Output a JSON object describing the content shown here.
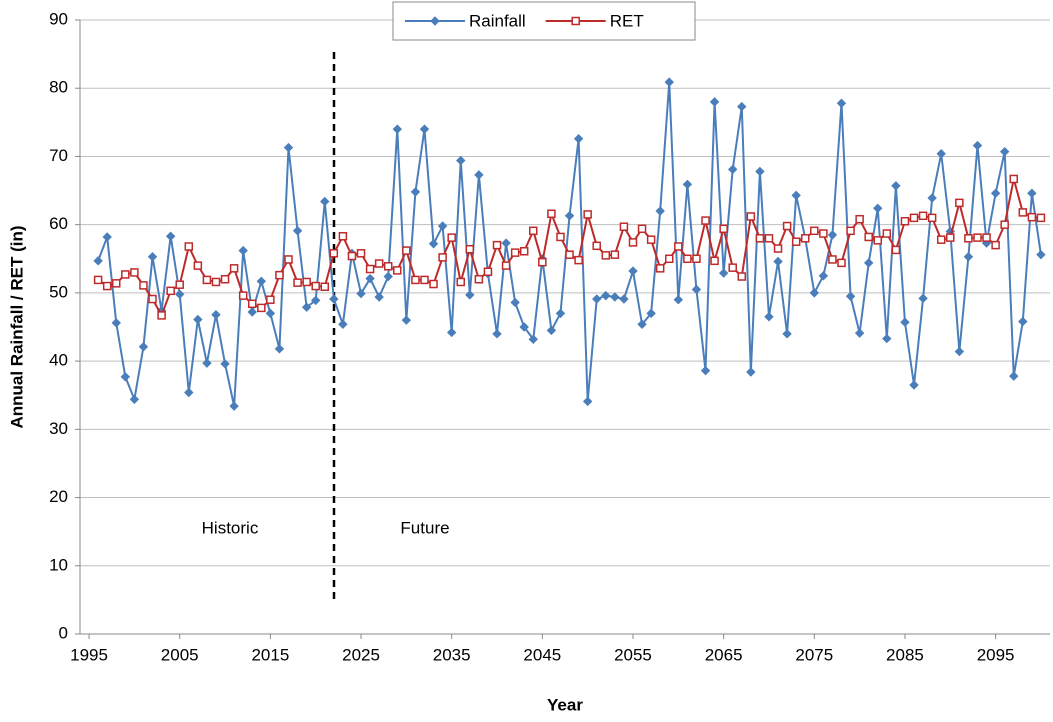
{
  "chart_data": {
    "type": "line",
    "xlabel": "Year",
    "ylabel": "Annual Rainfall / RET (in)",
    "annotations": [
      "Historic",
      "Future"
    ],
    "x": [
      1996,
      1997,
      1998,
      1999,
      2000,
      2001,
      2002,
      2003,
      2004,
      2005,
      2006,
      2007,
      2008,
      2009,
      2010,
      2011,
      2012,
      2013,
      2014,
      2015,
      2016,
      2017,
      2018,
      2019,
      2020,
      2021,
      2022,
      2023,
      2024,
      2025,
      2026,
      2027,
      2028,
      2029,
      2030,
      2031,
      2032,
      2033,
      2034,
      2035,
      2036,
      2037,
      2038,
      2039,
      2040,
      2041,
      2042,
      2043,
      2044,
      2045,
      2046,
      2047,
      2048,
      2049,
      2050,
      2051,
      2052,
      2053,
      2054,
      2055,
      2056,
      2057,
      2058,
      2059,
      2060,
      2061,
      2062,
      2063,
      2064,
      2065,
      2066,
      2067,
      2068,
      2069,
      2070,
      2071,
      2072,
      2073,
      2074,
      2075,
      2076,
      2077,
      2078,
      2079,
      2080,
      2081,
      2082,
      2083,
      2084,
      2085,
      2086,
      2087,
      2088,
      2089,
      2090,
      2091,
      2092,
      2093,
      2094,
      2095,
      2096,
      2097,
      2098,
      2099,
      2100
    ],
    "series": [
      {
        "name": "Rainfall",
        "color": "#4a7ebb",
        "marker": "diamond",
        "values": [
          54.7,
          58.2,
          45.6,
          37.7,
          34.4,
          42.1,
          55.3,
          47.4,
          58.3,
          49.8,
          35.4,
          46.1,
          39.7,
          46.8,
          39.6,
          33.4,
          56.2,
          47.2,
          51.7,
          47.0,
          41.8,
          71.3,
          59.1,
          47.9,
          48.9,
          63.4,
          49.1,
          45.4,
          55.8,
          49.9,
          52.1,
          49.4,
          52.4,
          74.0,
          46.0,
          64.8,
          74.0,
          57.2,
          59.8,
          44.2,
          69.4,
          49.7,
          67.3,
          52.8,
          44.0,
          57.3,
          48.6,
          45.0,
          43.2,
          55.0,
          44.5,
          47.0,
          61.3,
          72.6,
          34.1,
          49.1,
          49.6,
          49.4,
          49.1,
          53.2,
          45.4,
          47.0,
          62.0,
          80.9,
          49.0,
          65.9,
          50.5,
          38.6,
          78.0,
          52.9,
          68.1,
          77.3,
          38.4,
          67.8,
          46.5,
          54.6,
          44.0,
          64.3,
          58.0,
          50.0,
          52.5,
          58.5,
          77.8,
          49.5,
          44.1,
          54.4,
          62.4,
          43.3,
          65.7,
          45.7,
          36.5,
          49.2,
          63.9,
          70.4,
          59.0,
          41.4,
          55.3,
          71.6,
          57.3,
          64.6,
          70.7,
          37.8,
          45.8,
          64.6,
          55.6
        ]
      },
      {
        "name": "RET",
        "color": "#be2a2a",
        "marker": "square",
        "values": [
          51.9,
          51.0,
          51.4,
          52.7,
          53.0,
          51.1,
          49.1,
          46.7,
          50.3,
          51.2,
          56.8,
          54.0,
          51.9,
          51.6,
          52.0,
          53.6,
          49.6,
          48.4,
          47.8,
          49.0,
          52.6,
          54.9,
          51.5,
          51.6,
          51.0,
          50.9,
          55.8,
          58.3,
          55.4,
          55.8,
          53.5,
          54.3,
          53.9,
          53.3,
          56.2,
          51.9,
          51.9,
          51.3,
          55.2,
          58.1,
          51.6,
          56.4,
          52.0,
          53.1,
          57.0,
          54.0,
          55.9,
          56.1,
          59.1,
          54.5,
          61.6,
          58.2,
          55.6,
          54.8,
          61.5,
          56.9,
          55.5,
          55.6,
          59.7,
          57.4,
          59.4,
          57.8,
          53.6,
          55.0,
          56.8,
          55.0,
          55.0,
          60.6,
          54.7,
          59.4,
          53.7,
          52.4,
          61.2,
          58.0,
          58.0,
          56.5,
          59.8,
          57.5,
          58.0,
          59.1,
          58.7,
          54.9,
          54.4,
          59.1,
          60.8,
          58.2,
          57.7,
          58.7,
          56.3,
          60.5,
          61.0,
          61.3,
          61.0,
          57.8,
          58.1,
          63.2,
          58.0,
          58.1,
          58.1,
          57.0,
          60.0,
          66.7,
          61.8,
          61.1,
          61.0
        ]
      }
    ],
    "xlim": [
      1994,
      2101
    ],
    "xticks": [
      1995,
      2005,
      2015,
      2025,
      2035,
      2045,
      2055,
      2065,
      2075,
      2085,
      2095
    ],
    "ylim": [
      0,
      90
    ],
    "yticks": [
      0,
      10,
      20,
      30,
      40,
      50,
      60,
      70,
      80,
      90
    ],
    "grid": true,
    "legend": "top"
  }
}
